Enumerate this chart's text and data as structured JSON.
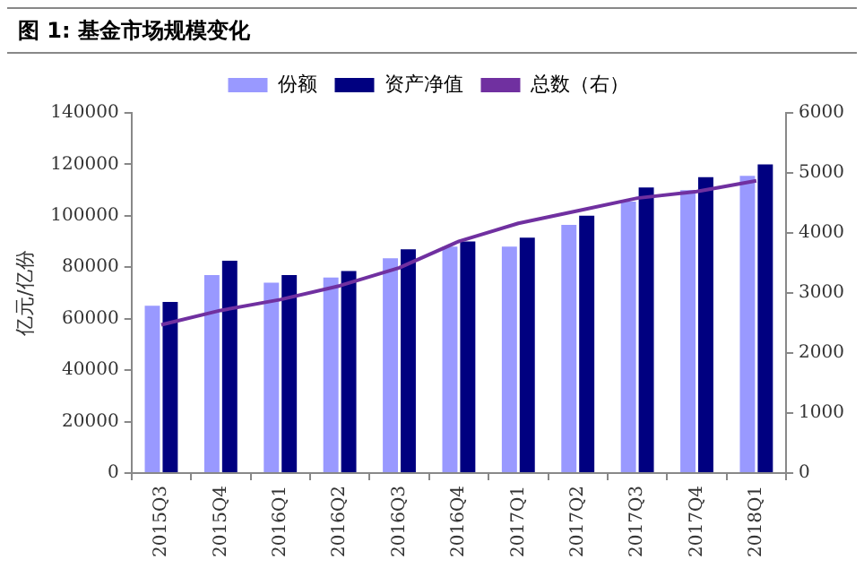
{
  "chart_data": {
    "type": "bar",
    "title": "图 1:  基金市场规模变化",
    "ylabel": "亿元/亿份",
    "categories": [
      "2015Q3",
      "2015Q4",
      "2016Q1",
      "2016Q2",
      "2016Q3",
      "2016Q4",
      "2017Q1",
      "2017Q2",
      "2017Q3",
      "2017Q4",
      "2018Q1"
    ],
    "series": [
      {
        "name": "份额",
        "color": "#9999ff",
        "values": [
          65000,
          77000,
          74000,
          76000,
          83500,
          88000,
          88000,
          96500,
          105500,
          110000,
          115500
        ]
      },
      {
        "name": "资产净值",
        "color": "#000080",
        "values": [
          66500,
          82500,
          77000,
          78500,
          87000,
          90000,
          91500,
          100000,
          111000,
          115000,
          120000
        ]
      },
      {
        "name": "总数（右）",
        "type": "line",
        "axis": "y2",
        "color": "#7030a0",
        "values": [
          2470,
          2710,
          2890,
          3120,
          3420,
          3860,
          4160,
          4370,
          4580,
          4690,
          4870
        ]
      }
    ],
    "ylim": [
      0,
      140000
    ],
    "yticks": [
      0,
      20000,
      40000,
      60000,
      80000,
      100000,
      120000,
      140000
    ],
    "y2lim": [
      0,
      6000
    ],
    "y2ticks": [
      0,
      1000,
      2000,
      3000,
      4000,
      5000,
      6000
    ],
    "grid": false,
    "legend": "top",
    "marker": "none"
  }
}
